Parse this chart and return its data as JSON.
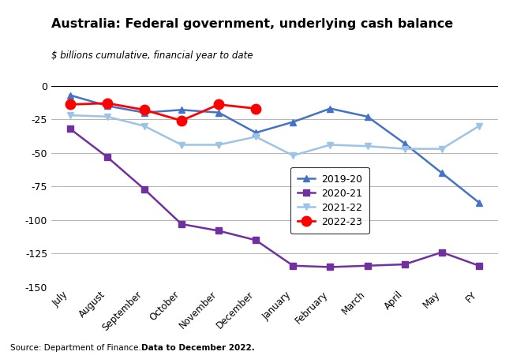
{
  "title": "Australia: Federal government, underlying cash balance",
  "subtitle": "$ billions cumulative, financial year to date",
  "source": "Source: Department of Finance. ",
  "source_bold": "Data to December 2022.",
  "x_labels": [
    "July",
    "August",
    "September",
    "October",
    "November",
    "December",
    "January",
    "February",
    "March",
    "April",
    "May",
    "FY"
  ],
  "series_order": [
    "2019-20",
    "2020-21",
    "2021-22",
    "2022-23"
  ],
  "series": {
    "2019-20": {
      "values": [
        -7,
        -15,
        -20,
        -18,
        -20,
        -35,
        -27,
        -17,
        -23,
        -43,
        -65,
        -87
      ],
      "color": "#4472C4",
      "marker": "^",
      "linewidth": 1.8,
      "markersize": 6
    },
    "2020-21": {
      "values": [
        -32,
        -53,
        -77,
        -103,
        -108,
        -115,
        -134,
        -135,
        -134,
        -133,
        -124,
        -134
      ],
      "color": "#7030A0",
      "marker": "s",
      "linewidth": 1.8,
      "markersize": 6
    },
    "2021-22": {
      "values": [
        -22,
        -23,
        -30,
        -44,
        -44,
        -38,
        -52,
        -44,
        -45,
        -47,
        -47,
        -30
      ],
      "color": "#9DC3E6",
      "marker": "v",
      "linewidth": 1.8,
      "markersize": 6
    },
    "2022-23": {
      "values": [
        -14,
        -13,
        -18,
        -26,
        -14,
        -17,
        null,
        null,
        null,
        null,
        null,
        null
      ],
      "color": "#FF0000",
      "marker": "o",
      "linewidth": 2.0,
      "markersize": 9
    }
  },
  "ylim": [
    -150,
    5
  ],
  "yticks": [
    0,
    -25,
    -50,
    -75,
    -100,
    -125,
    -150
  ],
  "background_color": "#FFFFFF",
  "grid_color": "#AAAAAA"
}
